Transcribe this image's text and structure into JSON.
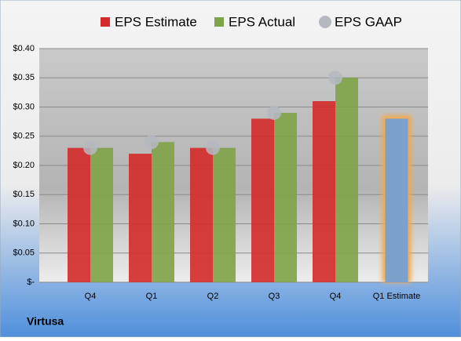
{
  "chart_data": {
    "type": "bar",
    "categories": [
      "Q4",
      "Q1",
      "Q2",
      "Q3",
      "Q4",
      "Q1 Estimate"
    ],
    "series": [
      {
        "name": "EPS Estimate",
        "color": "#d42a2a",
        "values": [
          0.23,
          0.22,
          0.23,
          0.28,
          0.31,
          0.28
        ]
      },
      {
        "name": "EPS Actual",
        "color": "#7fa348",
        "values": [
          0.23,
          0.24,
          0.23,
          0.29,
          0.35,
          null
        ]
      },
      {
        "name": "EPS GAAP",
        "color": "#b4b8bf",
        "type": "scatter",
        "values": [
          0.23,
          0.24,
          0.23,
          0.29,
          0.35,
          null
        ]
      }
    ],
    "highlight_color": "#6e9fd8",
    "ylim": [
      0,
      0.4
    ],
    "yticks": [
      {
        "value": 0,
        "label": "$-"
      },
      {
        "value": 0.05,
        "label": "$0.05"
      },
      {
        "value": 0.1,
        "label": "$0.10"
      },
      {
        "value": 0.15,
        "label": "$0.15"
      },
      {
        "value": 0.2,
        "label": "$0.20"
      },
      {
        "value": 0.25,
        "label": "$0.25"
      },
      {
        "value": 0.3,
        "label": "$0.30"
      },
      {
        "value": 0.35,
        "label": "$0.35"
      },
      {
        "value": 0.4,
        "label": "$0.40"
      }
    ],
    "grid": true,
    "footer": "Virtusa"
  }
}
